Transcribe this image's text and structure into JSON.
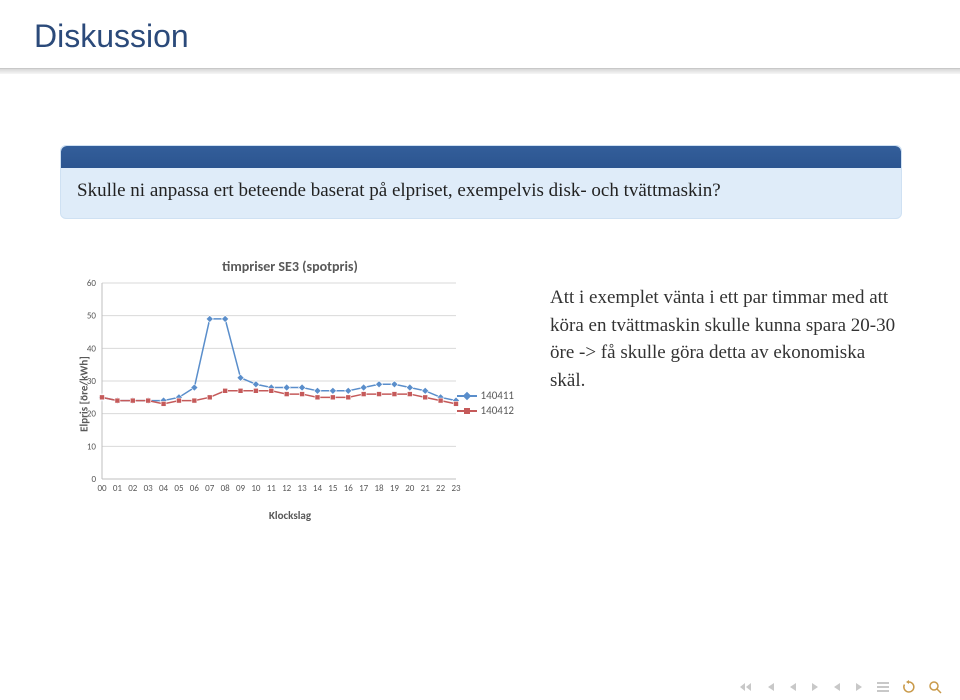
{
  "title": "Diskussion",
  "question": "Skulle ni anpassa ert beteende baserat på elpriset, exempelvis disk- och tvättmaskin?",
  "body_text": "Att i exemplet vänta i ett par timmar med att köra en tvättmaskin skulle kunna spara 20-30 öre -> få skulle göra detta av ekonomiska skäl.",
  "chart": {
    "title": "timpriser SE3 (spotpris)",
    "ylabel": "Elpris [öre/kWh]",
    "xlabel": "Klockslag",
    "ylim": [
      0,
      60
    ],
    "ytick_step": 10,
    "categories": [
      "00",
      "01",
      "02",
      "03",
      "04",
      "05",
      "06",
      "07",
      "08",
      "09",
      "10",
      "11",
      "12",
      "13",
      "14",
      "15",
      "16",
      "17",
      "18",
      "19",
      "20",
      "21",
      "22",
      "23"
    ],
    "series": [
      {
        "name": "140411",
        "color": "#5a8ecb",
        "marker": "diamond",
        "values": [
          25,
          24,
          24,
          24,
          24,
          25,
          28,
          49,
          49,
          31,
          29,
          28,
          28,
          28,
          27,
          27,
          27,
          28,
          29,
          29,
          28,
          27,
          25,
          24
        ]
      },
      {
        "name": "140412",
        "color": "#c55a5a",
        "marker": "square",
        "values": [
          25,
          24,
          24,
          24,
          23,
          24,
          24,
          25,
          27,
          27,
          27,
          27,
          26,
          26,
          25,
          25,
          25,
          26,
          26,
          26,
          26,
          25,
          24,
          23
        ]
      }
    ],
    "grid_color": "#d9d9d9",
    "axis_color": "#bfbfbf",
    "tick_font_size": 9,
    "label_font_size": 11,
    "title_font_size": 14,
    "background": "#ffffff",
    "line_width": 1.5,
    "marker_size": 5
  },
  "colors": {
    "title_color": "#2b4a7a",
    "block_bg": "#dfecf9",
    "block_header": "#335e9a"
  }
}
